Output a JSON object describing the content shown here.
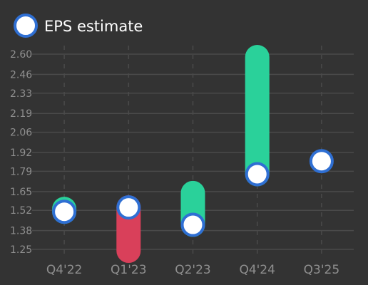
{
  "chart_data": {
    "type": "scatter",
    "legend": {
      "label": "EPS estimate",
      "position": "top-left"
    },
    "categories": [
      "Q4'22",
      "Q1'23",
      "Q2'23",
      "Q4'24",
      "Q3'25"
    ],
    "series": [
      {
        "name": "EPS estimate",
        "values": [
          1.51,
          1.54,
          1.42,
          1.77,
          1.86
        ]
      },
      {
        "name": "",
        "values": [
          1.53,
          1.24,
          1.64,
          2.58,
          null
        ]
      }
    ],
    "y_ticks": [
      "1.25",
      "1.38",
      "1.52",
      "1.65",
      "1.79",
      "1.92",
      "2.06",
      "2.19",
      "2.33",
      "2.46",
      "2.60"
    ],
    "ylim": [
      1.22,
      2.62
    ],
    "grid": true,
    "colors": {
      "background": "#333333",
      "grid": "#4a4a4a",
      "beat": "#2ad19a",
      "miss": "#d9405a",
      "marker_fill": "#ffffff",
      "marker_stroke": "#2f6fd3",
      "text": "#8f8f8f"
    }
  }
}
